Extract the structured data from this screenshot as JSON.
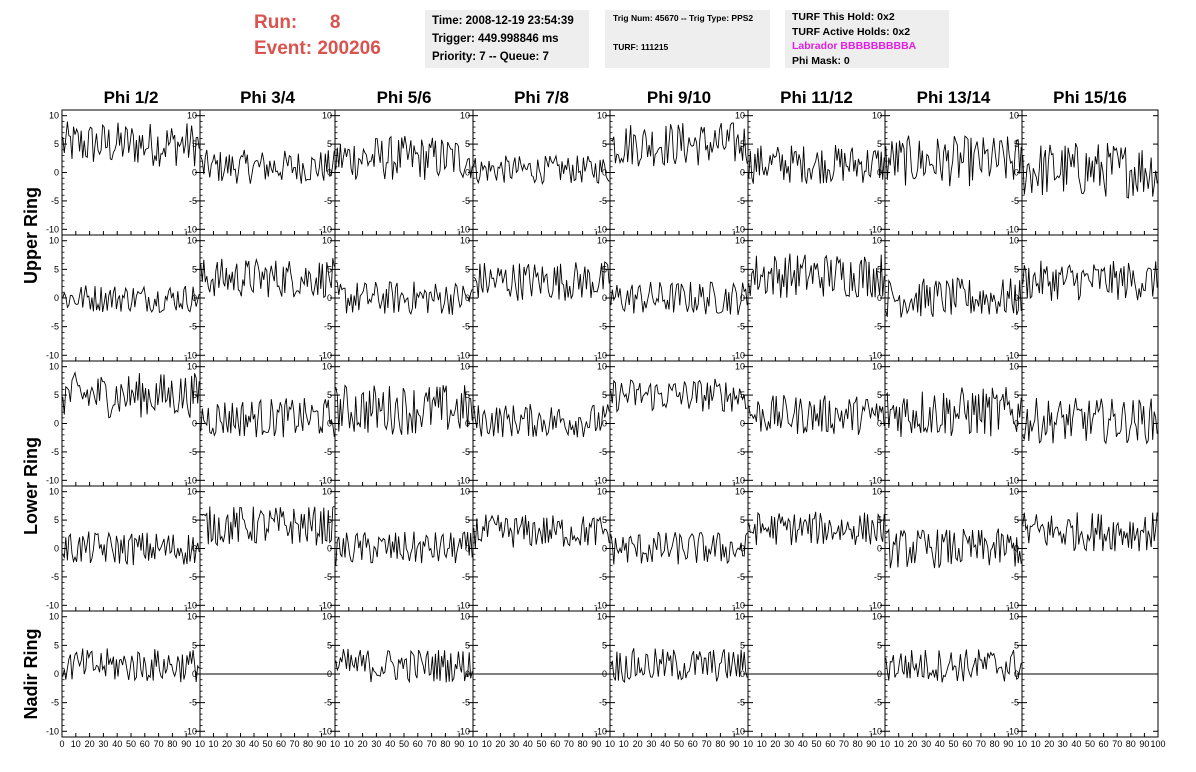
{
  "header": {
    "run_label": "Run:",
    "run_value": "8",
    "event_label": "Event:",
    "event_value": "200206"
  },
  "info_time": {
    "time": "Time: 2008-12-19 23:54:39",
    "trigger": "Trigger: 449.998846 ms",
    "priority": "Priority: 7 -- Queue: 7"
  },
  "info_trig": {
    "trig": "Trig Num: 45670 -- Trig Type: PPS2",
    "turf": "TURF: 111215"
  },
  "info_turf": {
    "hold": "TURF This Hold: 0x2",
    "active": "TURF Active Holds: 0x2",
    "labrador": "Labrador BBBBBBBBBA",
    "phimask": "Phi Mask: 0"
  },
  "colors": {
    "run_text": "#d9534f",
    "labrador_text": "#e020e0",
    "box_bg": "#eeeeee",
    "trace": "#000000"
  },
  "chart_data": {
    "type": "line",
    "title": "",
    "columns": [
      "Phi 1/2",
      "Phi 3/4",
      "Phi 5/6",
      "Phi 7/8",
      "Phi 9/10",
      "Phi 11/12",
      "Phi 13/14",
      "Phi 15/16"
    ],
    "row_labels": [
      "Upper Ring",
      "Lower Ring",
      "Nadir Ring"
    ],
    "row_label_spans": [
      2,
      2,
      1
    ],
    "panel_rows": 5,
    "xlim": [
      0,
      100
    ],
    "ylim": [
      -11,
      11
    ],
    "x_ticks": [
      0,
      10,
      20,
      30,
      40,
      50,
      60,
      70,
      80,
      90,
      100
    ],
    "x_tick_labels_first_panel": [
      "0",
      "10",
      "20",
      "30",
      "40",
      "50",
      "60",
      "70",
      "80",
      "90",
      "10"
    ],
    "x_tick_labels_middle_panels": [
      "10",
      "20",
      "30",
      "40",
      "50",
      "60",
      "70",
      "80",
      "90",
      "10"
    ],
    "x_tick_labels_last_panel": [
      "10",
      "20",
      "30",
      "40",
      "50",
      "60",
      "70",
      "80",
      "90",
      "100"
    ],
    "y_ticks": [
      -10,
      -5,
      0,
      5,
      10
    ],
    "y_tick_labels": [
      "-10",
      "-5",
      "0",
      "5",
      "10"
    ],
    "samples_per_trace": 90,
    "panels": [
      [
        {
          "baseline": 5,
          "spread": 4
        },
        {
          "baseline": 1,
          "spread": 3
        },
        {
          "baseline": 2.5,
          "spread": 4
        },
        {
          "baseline": 0.5,
          "spread": 2.5
        },
        {
          "baseline": 5,
          "spread": 4
        },
        {
          "baseline": 1.5,
          "spread": 3.5
        },
        {
          "baseline": 2,
          "spread": 4.5
        },
        {
          "baseline": 0.5,
          "spread": 5
        }
      ],
      [
        {
          "baseline": 0,
          "spread": 2.5
        },
        {
          "baseline": 3.5,
          "spread": 3.5
        },
        {
          "baseline": 0,
          "spread": 3
        },
        {
          "baseline": 3,
          "spread": 3.5
        },
        {
          "baseline": 0,
          "spread": 3
        },
        {
          "baseline": 4,
          "spread": 4
        },
        {
          "baseline": 0,
          "spread": 3.5
        },
        {
          "baseline": 3,
          "spread": 3.5
        }
      ],
      [
        {
          "baseline": 5,
          "spread": 4
        },
        {
          "baseline": 1,
          "spread": 3.5
        },
        {
          "baseline": 2.5,
          "spread": 4.5
        },
        {
          "baseline": 0.5,
          "spread": 3
        },
        {
          "baseline": 5,
          "spread": 3
        },
        {
          "baseline": 1.5,
          "spread": 3.5
        },
        {
          "baseline": 2,
          "spread": 4.5
        },
        {
          "baseline": 0.5,
          "spread": 4
        }
      ],
      [
        {
          "baseline": 0,
          "spread": 3
        },
        {
          "baseline": 4,
          "spread": 3.5
        },
        {
          "baseline": 0,
          "spread": 3
        },
        {
          "baseline": 3,
          "spread": 3
        },
        {
          "baseline": 0,
          "spread": 3
        },
        {
          "baseline": 3.5,
          "spread": 3
        },
        {
          "baseline": 0,
          "spread": 3.5
        },
        {
          "baseline": 3,
          "spread": 3.5
        }
      ],
      [
        {
          "baseline": 1.5,
          "spread": 3
        },
        {
          "baseline": 0,
          "spread": 0
        },
        {
          "baseline": 1.5,
          "spread": 3
        },
        {
          "baseline": 0,
          "spread": 0
        },
        {
          "baseline": 1.5,
          "spread": 3
        },
        {
          "baseline": 0,
          "spread": 0
        },
        {
          "baseline": 1.5,
          "spread": 3
        },
        {
          "baseline": 0,
          "spread": 0
        }
      ]
    ]
  }
}
